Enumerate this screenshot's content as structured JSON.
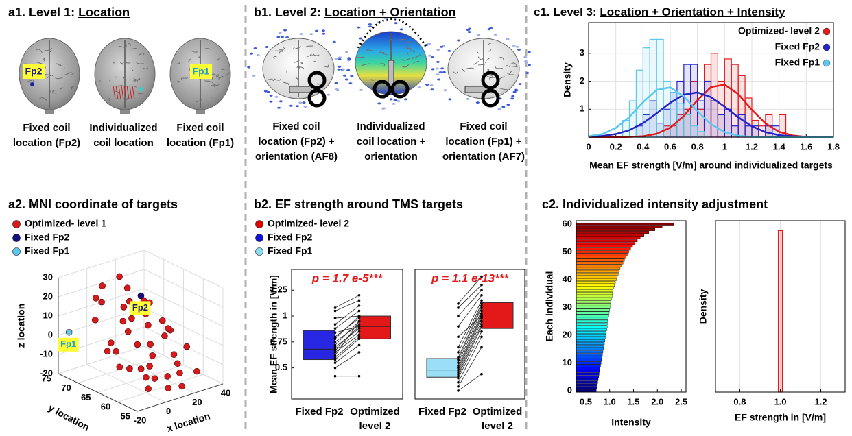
{
  "panels": {
    "a1": {
      "title": "a1. Level 1: ",
      "title_underlined": "Location",
      "labels": [
        "Fp2",
        "Fp1"
      ],
      "captions": [
        "Fixed coil\nlocation (Fp2)",
        "Individualized\ncoil location",
        "Fixed coil\nlocation (Fp1)"
      ]
    },
    "b1": {
      "title": "b1. Level 2: ",
      "title_underlined": "Location + Orientation",
      "captions": [
        "Fixed coil\nlocation (Fp2) +\norientation (AF8)",
        "Individualized\ncoil location +\norientation",
        "Fixed coil\nlocation (Fp1) +\norientation (AF7)"
      ]
    },
    "c1": {
      "title": "c1. Level 3: ",
      "title_underlined": "Location + Orientation + Intensity"
    },
    "a2": {
      "title": "a2. MNI coordinate of targets"
    },
    "b2": {
      "title": "b2. EF strength around TMS targets"
    },
    "c2": {
      "title": "c2. Individualized intensity adjustment"
    }
  },
  "chart_data": [
    {
      "type": "histogram",
      "xlabel": "Mean EF strength [V/m] around individualized targets",
      "ylabel": "Density",
      "xlim": [
        0,
        1.8
      ],
      "xticks": [
        0,
        0.2,
        0.4,
        0.6,
        0.8,
        1,
        1.2,
        1.4,
        1.6,
        1.8
      ],
      "ylim": [
        0,
        4.1
      ],
      "yticks": [
        1,
        2,
        3
      ],
      "grid": true,
      "legend": "upper right",
      "fit_x": [
        0,
        0.1,
        0.2,
        0.3,
        0.4,
        0.5,
        0.6,
        0.7,
        0.8,
        0.9,
        1,
        1.1,
        1.2,
        1.3,
        1.4,
        1.5,
        1.6,
        1.7,
        1.8
      ],
      "series": [
        {
          "name": "Optimized- level 2",
          "color": "#e31a1c",
          "bins": [
            0.55,
            0.6,
            0.65,
            0.7,
            0.75,
            0.8,
            0.85,
            0.9,
            0.95,
            1,
            1.05,
            1.1,
            1.15,
            1.2,
            1.25,
            1.3,
            1.35,
            1.4,
            1.45
          ],
          "values": [
            0.4,
            0.4,
            0.8,
            1.0,
            2.0,
            1.0,
            2.6,
            3.0,
            2.0,
            2.8,
            2.6,
            2.2,
            1.4,
            0.6,
            0.4,
            0.8,
            0,
            0.8
          ],
          "fit": [
            0,
            0,
            0,
            0.01,
            0.03,
            0.12,
            0.34,
            0.76,
            1.32,
            1.79,
            1.88,
            1.54,
            0.98,
            0.49,
            0.19,
            0.06,
            0.01,
            0,
            0
          ]
        },
        {
          "name": "Fixed Fp2",
          "color": "#2323c8",
          "bins": [
            0.35,
            0.4,
            0.45,
            0.5,
            0.55,
            0.6,
            0.65,
            0.7,
            0.75,
            0.8,
            0.85,
            0.9,
            0.95,
            1,
            1.05,
            1.1,
            1.15,
            1.2,
            1.25,
            1.3,
            1.35,
            1.4
          ],
          "values": [
            0.4,
            0.8,
            1.3,
            0.5,
            1.0,
            1.6,
            2.0,
            2.6,
            2.6,
            1.3,
            2.0,
            1.3,
            0.8,
            1.0,
            0.4,
            0.8,
            0.4,
            0.4,
            0,
            0.4,
            0.4
          ],
          "fit": [
            0.01,
            0.04,
            0.11,
            0.25,
            0.5,
            0.85,
            1.23,
            1.52,
            1.6,
            1.43,
            1.09,
            0.71,
            0.39,
            0.18,
            0.07,
            0.03,
            0.01,
            0,
            0
          ]
        },
        {
          "name": "Fixed Fp1",
          "color": "#5bc8f0",
          "bins": [
            0.25,
            0.3,
            0.35,
            0.4,
            0.45,
            0.5,
            0.55,
            0.6,
            0.65,
            0.7,
            0.75,
            0.8,
            0.85
          ],
          "values": [
            0.6,
            1.3,
            2.4,
            3.2,
            3.5,
            3.5,
            2.0,
            1.6,
            1.2,
            0.8,
            0.4,
            0.2
          ],
          "fit": [
            0.03,
            0.11,
            0.33,
            0.72,
            1.25,
            1.69,
            1.78,
            1.46,
            0.93,
            0.46,
            0.18,
            0.05,
            0.01,
            0,
            0,
            0,
            0,
            0,
            0
          ]
        }
      ]
    },
    {
      "type": "scatter3d",
      "xlabel": "x location",
      "ylabel": "y location",
      "zlabel": "z location",
      "xlim": [
        -20,
        40
      ],
      "xticks": [
        -20,
        0,
        20,
        40
      ],
      "ylim": [
        55,
        75
      ],
      "yticks": [
        55,
        60,
        65,
        70,
        75
      ],
      "zlim": [
        -20,
        30
      ],
      "zticks": [
        -20,
        -10,
        0,
        10,
        20,
        30
      ],
      "grid": true,
      "series": [
        {
          "name": "Optimized- level 1",
          "color": "#d7191c",
          "x": [
            -8,
            -5,
            -2,
            2,
            5,
            8,
            12,
            15,
            18,
            22,
            25,
            28,
            30,
            -6,
            0,
            4,
            10,
            14,
            20,
            26,
            32,
            -10,
            -4,
            6,
            10,
            16,
            22,
            28,
            34,
            -2,
            8,
            18,
            24,
            30,
            12,
            2,
            -8,
            20,
            14,
            6
          ],
          "y": [
            70,
            68,
            66,
            72,
            64,
            62,
            70,
            60,
            66,
            68,
            62,
            64,
            58,
            62,
            60,
            66,
            58,
            64,
            72,
            70,
            66,
            64,
            58,
            68,
            62,
            70,
            60,
            66,
            62,
            72,
            74,
            58,
            64,
            70,
            68,
            62,
            66,
            74,
            56,
            60
          ],
          "z": [
            10,
            -5,
            -12,
            15,
            0,
            -10,
            12,
            -15,
            5,
            8,
            -8,
            2,
            -14,
            -8,
            -12,
            5,
            -18,
            -2,
            18,
            12,
            0,
            0,
            -15,
            8,
            -5,
            14,
            -10,
            5,
            -6,
            18,
            20,
            -12,
            0,
            10,
            8,
            -10,
            2,
            22,
            -16,
            -14
          ]
        },
        {
          "name": "Fixed Fp2",
          "color": "#101080",
          "label": "Fp2",
          "x": [
            24
          ],
          "y": [
            70
          ],
          "z": [
            15
          ]
        },
        {
          "name": "Fixed Fp1",
          "color": "#5bc8f0",
          "label": "Fp1",
          "x": [
            -18
          ],
          "y": [
            73
          ],
          "z": [
            3
          ]
        }
      ]
    },
    {
      "type": "box",
      "ylabel": "Mean  EF strength in [V/m]",
      "annotation": "p = 1.7 e-5***",
      "ylim": [
        0.2,
        1.45
      ],
      "yticks": [
        0.5,
        0.75,
        1,
        1.25
      ],
      "categories": [
        "Fixed Fp2",
        "Optimized\nlevel 2"
      ],
      "series": [
        {
          "name": "Fixed Fp2",
          "color": "#1010e0",
          "q1": 0.58,
          "median": 0.68,
          "q3": 0.86,
          "values": [
            0.42,
            0.5,
            0.55,
            0.58,
            0.6,
            0.62,
            0.65,
            0.67,
            0.68,
            0.7,
            0.72,
            0.75,
            0.78,
            0.8,
            0.84,
            0.88,
            0.92,
            0.98,
            1.05,
            1.08
          ]
        },
        {
          "name": "Optimized- level 2",
          "color": "#e00000",
          "q1": 0.78,
          "median": 0.9,
          "q3": 1.0,
          "values": [
            0.42,
            0.65,
            0.72,
            0.78,
            0.8,
            0.95,
            0.82,
            0.85,
            0.9,
            0.88,
            0.95,
            0.92,
            1.0,
            0.98,
            0.9,
            1.05,
            1.1,
            1.0,
            1.15,
            1.2
          ]
        }
      ]
    },
    {
      "type": "box",
      "annotation": "p = 1.1 e-13***",
      "ylim": [
        0.2,
        1.45
      ],
      "categories": [
        "Fixed Fp2",
        "Optimized\nlevel 2"
      ],
      "series": [
        {
          "name": "Fixed Fp1",
          "color": "#8fdcf5",
          "q1": 0.41,
          "median": 0.48,
          "q3": 0.59,
          "values": [
            0.28,
            0.32,
            0.36,
            0.4,
            0.42,
            0.44,
            0.46,
            0.48,
            0.5,
            0.52,
            0.55,
            0.58,
            0.6,
            0.65,
            0.7,
            0.8,
            0.9,
            1.0,
            1.08,
            1.12
          ]
        },
        {
          "name": "Optimized- level 2",
          "color": "#e00000",
          "q1": 0.88,
          "median": 1.01,
          "q3": 1.13,
          "values": [
            0.44,
            0.7,
            0.8,
            0.85,
            0.9,
            0.92,
            0.95,
            0.98,
            1.0,
            1.02,
            1.05,
            1.08,
            1.1,
            1.12,
            1.15,
            1.0,
            1.2,
            1.25,
            1.3,
            1.38
          ]
        }
      ]
    },
    {
      "type": "barh",
      "xlabel": "Intensity",
      "ylabel": "Each individual",
      "colormap": "jet",
      "xlim": [
        0.3,
        2.6
      ],
      "xticks": [
        0.5,
        {
          "value": 1,
          "label": "1.0"
        },
        1.5,
        {
          "value": 2,
          "label": "2.0"
        },
        2.5
      ],
      "ylim": [
        -0.5,
        61.2
      ],
      "yticks": [
        0,
        10,
        20,
        30,
        40,
        50,
        60
      ],
      "values": [
        0.72,
        0.73,
        0.74,
        0.75,
        0.76,
        0.77,
        0.78,
        0.79,
        0.8,
        0.81,
        0.82,
        0.83,
        0.84,
        0.85,
        0.86,
        0.87,
        0.88,
        0.89,
        0.9,
        0.91,
        0.92,
        0.93,
        0.94,
        0.95,
        0.95,
        0.96,
        0.97,
        0.98,
        0.99,
        1.0,
        1.01,
        1.02,
        1.03,
        1.04,
        1.05,
        1.06,
        1.07,
        1.08,
        1.1,
        1.12,
        1.14,
        1.16,
        1.18,
        1.2,
        1.22,
        1.25,
        1.28,
        1.31,
        1.34,
        1.37,
        1.4,
        1.44,
        1.48,
        1.53,
        1.58,
        1.64,
        1.72,
        1.82,
        1.95,
        2.1,
        2.35
      ]
    },
    {
      "type": "histogram",
      "xlabel": "EF strength in [V/m]",
      "ylabel": "Density",
      "xlim": [
        0.68,
        1.32
      ],
      "xticks": [
        0.8,
        {
          "value": 1,
          "label": "1.0"
        },
        1.2
      ],
      "ylim": [
        0,
        52
      ],
      "grid": true,
      "series": [
        {
          "color": "#e31a1c",
          "bins": [
            0.99,
            1.01
          ],
          "values": [
            49
          ]
        }
      ]
    }
  ]
}
